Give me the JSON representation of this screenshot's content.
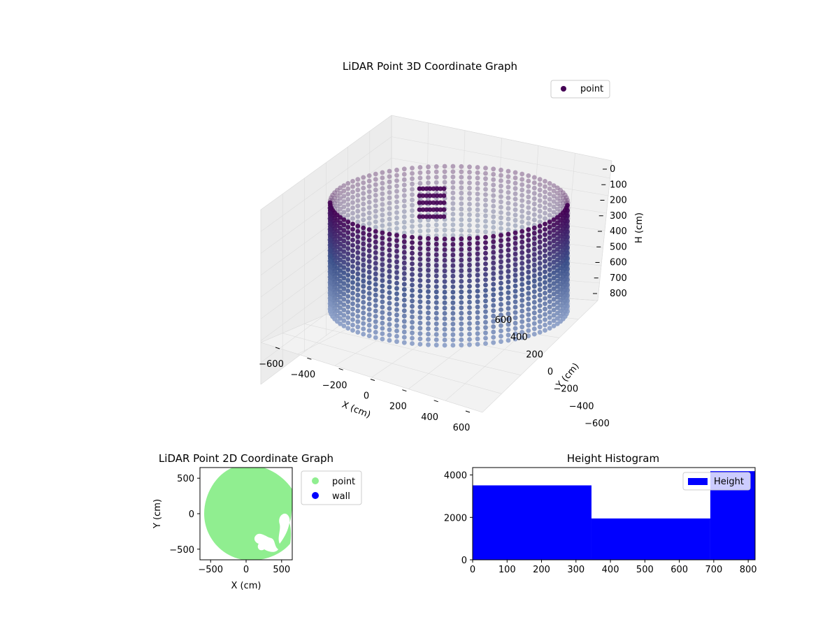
{
  "chart_data": [
    {
      "type": "scatter",
      "projection": "3d",
      "title": "LiDAR Point 3D Coordinate Graph",
      "xlabel": "X (cm)",
      "ylabel": "Y (cm)",
      "zlabel": "H (cm)",
      "xlim": [
        -650,
        650
      ],
      "ylim": [
        -650,
        650
      ],
      "zlim": [
        0,
        820
      ],
      "z_inverted": true,
      "x_ticks": [
        "−600",
        "−400",
        "−200",
        "0",
        "200",
        "400",
        "600"
      ],
      "y_ticks": [
        "−600",
        "−400",
        "−200",
        "0",
        "200",
        "400",
        "600"
      ],
      "z_ticks": [
        "0",
        "100",
        "200",
        "300",
        "400",
        "500",
        "600",
        "700",
        "800"
      ],
      "legend": {
        "placement": "top-right",
        "entries": [
          "point"
        ]
      },
      "colormap": "viridis (by height)",
      "colors": {
        "top": "#440154",
        "mid": "#3b518b",
        "low": "#a2b3d3"
      },
      "series": [
        {
          "name": "point",
          "description": "cylindrical wall of points, radius ≈ 600 cm, heights 0–820 cm"
        }
      ],
      "grid": true
    },
    {
      "type": "scatter",
      "title": "LiDAR Point 2D Coordinate Graph",
      "xlabel": "X (cm)",
      "ylabel": "Y (cm)",
      "xlim": [
        -650,
        650
      ],
      "ylim": [
        -650,
        650
      ],
      "x_ticks": [
        "−500",
        "0",
        "500"
      ],
      "y_ticks": [
        "500",
        "0",
        "−500"
      ],
      "legend": {
        "placement": "outside-right",
        "entries": [
          "point",
          "wall"
        ]
      },
      "colors": {
        "point": "#90ee90",
        "wall": "#0000ff"
      },
      "series": [
        {
          "name": "point",
          "color": "#90ee90"
        },
        {
          "name": "wall",
          "color": "#0000ff"
        }
      ]
    },
    {
      "type": "bar",
      "subtype": "histogram",
      "title": "Height Histogram",
      "xlabel": "",
      "ylabel": "",
      "xlim": [
        0,
        820
      ],
      "ylim": [
        0,
        4350
      ],
      "x_ticks": [
        "0",
        "100",
        "200",
        "300",
        "400",
        "500",
        "600",
        "700",
        "800"
      ],
      "y_ticks": [
        "0",
        "2000",
        "4000"
      ],
      "bins": [
        {
          "start": 0,
          "end": 345,
          "count": 3510
        },
        {
          "start": 345,
          "end": 690,
          "count": 1950
        },
        {
          "start": 690,
          "end": 820,
          "count": 4180
        }
      ],
      "legend": {
        "placement": "top-right",
        "entries": [
          "Height"
        ]
      },
      "colors": {
        "bar": "#0000ff"
      },
      "series": [
        {
          "name": "Height",
          "color": "#0000ff"
        }
      ]
    }
  ]
}
